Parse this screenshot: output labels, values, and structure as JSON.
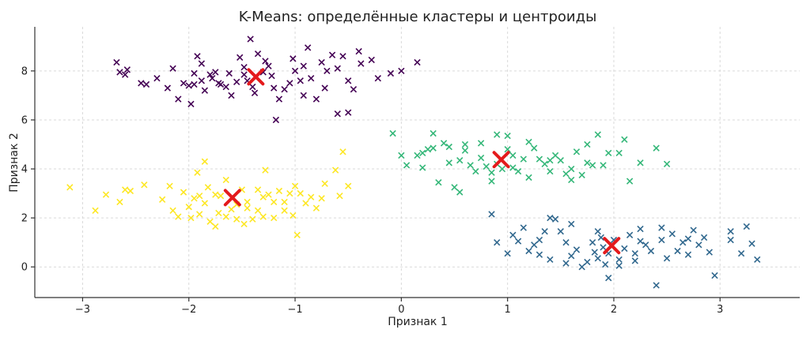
{
  "chart_data": {
    "type": "scatter",
    "title": "K-Means: определённые кластеры и центроиды",
    "xlabel": "Признак 1",
    "ylabel": "Признак 2",
    "xlim": [
      -3.45,
      3.75
    ],
    "ylim": [
      -1.25,
      9.8
    ],
    "xticks": [
      -3,
      -2,
      -1,
      0,
      1,
      2,
      3
    ],
    "xtick_labels": [
      "−3",
      "−2",
      "−1",
      "0",
      "1",
      "2",
      "3"
    ],
    "yticks": [
      0,
      2,
      4,
      6,
      8
    ],
    "ytick_labels": [
      "0",
      "2",
      "4",
      "6",
      "8"
    ],
    "grid": true,
    "series": [
      {
        "color": "#440154",
        "marker": "x",
        "points": [
          [
            -2.68,
            8.35
          ],
          [
            -2.65,
            7.95
          ],
          [
            -2.6,
            7.85
          ],
          [
            -2.58,
            8.05
          ],
          [
            -2.45,
            7.5
          ],
          [
            -2.4,
            7.45
          ],
          [
            -2.2,
            7.3
          ],
          [
            -2.15,
            8.1
          ],
          [
            -2.05,
            7.5
          ],
          [
            -2.0,
            7.4
          ],
          [
            -1.98,
            6.65
          ],
          [
            -1.95,
            7.45
          ],
          [
            -1.92,
            8.6
          ],
          [
            -1.88,
            8.3
          ],
          [
            -1.85,
            7.2
          ],
          [
            -1.8,
            7.85
          ],
          [
            -1.78,
            7.7
          ],
          [
            -1.75,
            7.95
          ],
          [
            -1.72,
            7.5
          ],
          [
            -1.65,
            7.35
          ],
          [
            -1.6,
            7.0
          ],
          [
            -1.55,
            7.55
          ],
          [
            -1.52,
            8.55
          ],
          [
            -1.48,
            8.15
          ],
          [
            -1.45,
            7.6
          ],
          [
            -1.42,
            9.3
          ],
          [
            -1.4,
            7.35
          ],
          [
            -1.38,
            7.1
          ],
          [
            -1.35,
            8.7
          ],
          [
            -1.3,
            7.95
          ],
          [
            -1.28,
            8.4
          ],
          [
            -1.25,
            8.2
          ],
          [
            -1.22,
            7.8
          ],
          [
            -1.2,
            7.3
          ],
          [
            -1.15,
            6.85
          ],
          [
            -1.1,
            7.25
          ],
          [
            -1.05,
            7.5
          ],
          [
            -1.0,
            8.0
          ],
          [
            -0.95,
            7.6
          ],
          [
            -0.92,
            8.2
          ],
          [
            -0.88,
            8.95
          ],
          [
            -0.85,
            7.7
          ],
          [
            -0.8,
            6.85
          ],
          [
            -0.75,
            8.35
          ],
          [
            -0.7,
            8.0
          ],
          [
            -0.65,
            8.65
          ],
          [
            -0.6,
            6.25
          ],
          [
            -0.55,
            8.6
          ],
          [
            -0.5,
            7.6
          ],
          [
            -0.45,
            7.25
          ],
          [
            -0.38,
            8.3
          ],
          [
            -0.28,
            8.45
          ],
          [
            -0.22,
            7.7
          ],
          [
            -0.1,
            7.9
          ],
          [
            0.0,
            8.0
          ],
          [
            -0.4,
            8.8
          ],
          [
            -0.6,
            8.1
          ],
          [
            -0.92,
            7.0
          ],
          [
            -1.18,
            6.0
          ],
          [
            -1.48,
            7.85
          ],
          [
            -1.7,
            7.45
          ],
          [
            -1.95,
            7.9
          ],
          [
            -2.1,
            6.85
          ],
          [
            -1.62,
            7.9
          ],
          [
            -1.02,
            8.5
          ],
          [
            -0.72,
            7.3
          ],
          [
            0.15,
            8.35
          ],
          [
            -0.5,
            6.3
          ],
          [
            -2.3,
            7.7
          ],
          [
            -1.88,
            7.6
          ]
        ]
      },
      {
        "color": "#31688e",
        "marker": "x",
        "points": [
          [
            0.85,
            2.15
          ],
          [
            0.9,
            1.0
          ],
          [
            1.05,
            1.3
          ],
          [
            1.1,
            1.05
          ],
          [
            1.2,
            0.65
          ],
          [
            1.25,
            0.9
          ],
          [
            1.3,
            0.5
          ],
          [
            1.35,
            1.45
          ],
          [
            1.4,
            0.3
          ],
          [
            1.45,
            1.95
          ],
          [
            1.5,
            1.45
          ],
          [
            1.55,
            1.0
          ],
          [
            1.6,
            0.45
          ],
          [
            1.65,
            0.7
          ],
          [
            1.7,
            0.0
          ],
          [
            1.75,
            0.2
          ],
          [
            1.8,
            1.0
          ],
          [
            1.82,
            0.6
          ],
          [
            1.85,
            0.35
          ],
          [
            1.88,
            1.2
          ],
          [
            1.9,
            0.8
          ],
          [
            1.92,
            0.1
          ],
          [
            1.95,
            0.55
          ],
          [
            2.0,
            1.1
          ],
          [
            2.05,
            0.3
          ],
          [
            2.1,
            0.75
          ],
          [
            2.15,
            1.3
          ],
          [
            2.2,
            0.55
          ],
          [
            2.25,
            1.05
          ],
          [
            2.3,
            0.9
          ],
          [
            2.35,
            0.65
          ],
          [
            2.4,
            -0.75
          ],
          [
            2.45,
            1.1
          ],
          [
            2.5,
            0.35
          ],
          [
            2.55,
            1.35
          ],
          [
            2.6,
            0.65
          ],
          [
            2.65,
            1.0
          ],
          [
            2.7,
            0.5
          ],
          [
            2.75,
            1.5
          ],
          [
            2.8,
            0.9
          ],
          [
            2.85,
            1.2
          ],
          [
            2.9,
            0.6
          ],
          [
            2.95,
            -0.35
          ],
          [
            3.1,
            1.1
          ],
          [
            3.25,
            1.65
          ],
          [
            3.3,
            0.95
          ],
          [
            3.35,
            0.3
          ],
          [
            1.6,
            1.75
          ],
          [
            1.4,
            2.0
          ],
          [
            1.15,
            1.6
          ],
          [
            1.3,
            1.1
          ],
          [
            2.05,
            0.05
          ],
          [
            2.45,
            1.6
          ],
          [
            1.85,
            1.45
          ],
          [
            2.2,
            0.25
          ],
          [
            1.55,
            0.15
          ],
          [
            2.7,
            1.15
          ],
          [
            1.95,
            -0.45
          ],
          [
            2.25,
            1.55
          ],
          [
            1.0,
            0.55
          ],
          [
            3.1,
            1.45
          ],
          [
            3.2,
            0.55
          ]
        ]
      },
      {
        "color": "#35b779",
        "marker": "x",
        "points": [
          [
            -0.08,
            5.45
          ],
          [
            0.0,
            4.55
          ],
          [
            0.05,
            4.15
          ],
          [
            0.15,
            4.55
          ],
          [
            0.2,
            4.05
          ],
          [
            0.25,
            4.8
          ],
          [
            0.3,
            4.85
          ],
          [
            0.35,
            3.45
          ],
          [
            0.4,
            5.05
          ],
          [
            0.45,
            4.25
          ],
          [
            0.5,
            3.25
          ],
          [
            0.55,
            3.05
          ],
          [
            0.6,
            4.75
          ],
          [
            0.65,
            4.15
          ],
          [
            0.7,
            3.9
          ],
          [
            0.75,
            4.45
          ],
          [
            0.8,
            4.1
          ],
          [
            0.85,
            3.5
          ],
          [
            0.9,
            4.2
          ],
          [
            0.95,
            4.0
          ],
          [
            1.0,
            5.35
          ],
          [
            1.05,
            4.55
          ],
          [
            1.1,
            3.9
          ],
          [
            1.15,
            4.4
          ],
          [
            1.2,
            3.65
          ],
          [
            1.25,
            4.85
          ],
          [
            1.3,
            4.4
          ],
          [
            1.35,
            4.2
          ],
          [
            1.4,
            3.9
          ],
          [
            1.45,
            4.55
          ],
          [
            1.5,
            4.35
          ],
          [
            1.55,
            3.8
          ],
          [
            1.6,
            4.0
          ],
          [
            1.65,
            4.7
          ],
          [
            1.7,
            3.75
          ],
          [
            1.75,
            5.0
          ],
          [
            1.8,
            4.15
          ],
          [
            1.85,
            5.4
          ],
          [
            1.9,
            4.15
          ],
          [
            1.95,
            4.65
          ],
          [
            2.05,
            4.65
          ],
          [
            2.1,
            5.2
          ],
          [
            2.15,
            3.5
          ],
          [
            2.25,
            4.25
          ],
          [
            2.4,
            4.85
          ],
          [
            2.5,
            4.2
          ],
          [
            0.3,
            5.45
          ],
          [
            0.6,
            5.0
          ],
          [
            0.75,
            5.05
          ],
          [
            1.2,
            5.1
          ],
          [
            0.45,
            4.9
          ],
          [
            0.9,
            5.4
          ],
          [
            1.0,
            4.8
          ],
          [
            1.4,
            4.35
          ],
          [
            0.2,
            4.65
          ],
          [
            1.75,
            4.25
          ],
          [
            1.6,
            3.55
          ],
          [
            1.05,
            4.05
          ],
          [
            0.55,
            4.35
          ],
          [
            0.85,
            3.85
          ]
        ]
      },
      {
        "color": "#fde725",
        "marker": "x",
        "points": [
          [
            -3.12,
            3.25
          ],
          [
            -2.88,
            2.3
          ],
          [
            -2.78,
            2.95
          ],
          [
            -2.65,
            2.65
          ],
          [
            -2.6,
            3.15
          ],
          [
            -2.55,
            3.1
          ],
          [
            -2.42,
            3.35
          ],
          [
            -2.25,
            2.75
          ],
          [
            -2.18,
            3.3
          ],
          [
            -2.15,
            2.3
          ],
          [
            -2.1,
            2.05
          ],
          [
            -2.05,
            3.05
          ],
          [
            -1.98,
            2.0
          ],
          [
            -1.95,
            2.8
          ],
          [
            -1.92,
            3.85
          ],
          [
            -1.9,
            2.15
          ],
          [
            -1.85,
            2.6
          ],
          [
            -1.82,
            3.25
          ],
          [
            -1.8,
            1.85
          ],
          [
            -1.75,
            1.65
          ],
          [
            -1.72,
            2.2
          ],
          [
            -1.7,
            2.9
          ],
          [
            -1.65,
            3.55
          ],
          [
            -1.6,
            2.35
          ],
          [
            -1.55,
            1.95
          ],
          [
            -1.5,
            3.15
          ],
          [
            -1.48,
            1.75
          ],
          [
            -1.45,
            2.65
          ],
          [
            -1.4,
            1.95
          ],
          [
            -1.35,
            2.3
          ],
          [
            -1.3,
            2.85
          ],
          [
            -1.28,
            3.95
          ],
          [
            -1.25,
            2.95
          ],
          [
            -1.2,
            2.0
          ],
          [
            -1.15,
            3.1
          ],
          [
            -1.1,
            2.65
          ],
          [
            -1.05,
            3.0
          ],
          [
            -1.02,
            2.1
          ],
          [
            -0.98,
            1.3
          ],
          [
            -0.95,
            3.0
          ],
          [
            -0.9,
            2.6
          ],
          [
            -0.85,
            2.85
          ],
          [
            -0.75,
            2.8
          ],
          [
            -0.72,
            3.4
          ],
          [
            -0.62,
            3.95
          ],
          [
            -0.58,
            2.9
          ],
          [
            -0.5,
            3.3
          ],
          [
            -1.9,
            2.9
          ],
          [
            -1.75,
            2.95
          ],
          [
            -1.2,
            2.65
          ],
          [
            -1.0,
            3.3
          ],
          [
            -1.35,
            3.15
          ],
          [
            -1.55,
            2.55
          ],
          [
            -1.65,
            2.05
          ],
          [
            -1.1,
            2.3
          ],
          [
            -0.8,
            2.4
          ],
          [
            -2.0,
            2.45
          ],
          [
            -1.3,
            2.05
          ],
          [
            -1.45,
            2.4
          ],
          [
            -0.55,
            4.7
          ],
          [
            -1.85,
            4.3
          ]
        ]
      }
    ],
    "centroids": {
      "color": "#e41a1c",
      "marker": "X",
      "points": [
        [
          -1.37,
          7.76
        ],
        [
          0.94,
          4.38
        ],
        [
          1.98,
          0.87
        ],
        [
          -1.59,
          2.83
        ]
      ]
    }
  }
}
